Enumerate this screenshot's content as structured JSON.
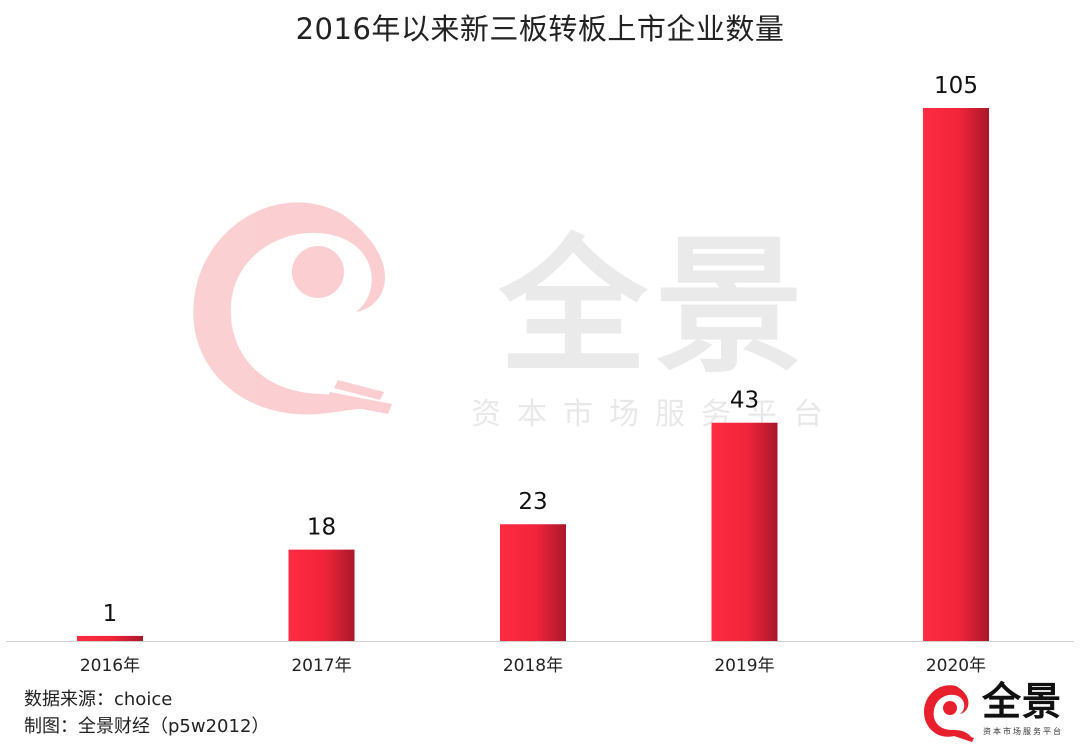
{
  "chart_data": {
    "type": "bar",
    "title": "2016年以来新三板转板上市企业数量",
    "categories": [
      "2016年",
      "2017年",
      "2018年",
      "2019年",
      "2020年"
    ],
    "values": [
      1,
      18,
      23,
      43,
      105
    ],
    "ylim": [
      0,
      105
    ],
    "grid": false,
    "show_y_axis": false,
    "bar_color": "#f0243a",
    "bar_shadow_color": "#b3182a"
  },
  "watermark": {
    "name": "全景",
    "tagline": "资本市场服务平台"
  },
  "source": {
    "line1": "数据来源：choice",
    "line2": "制图：全景财经（p5w2012）"
  },
  "logo": {
    "name": "全景",
    "tagline": "资本市场服务平台"
  }
}
